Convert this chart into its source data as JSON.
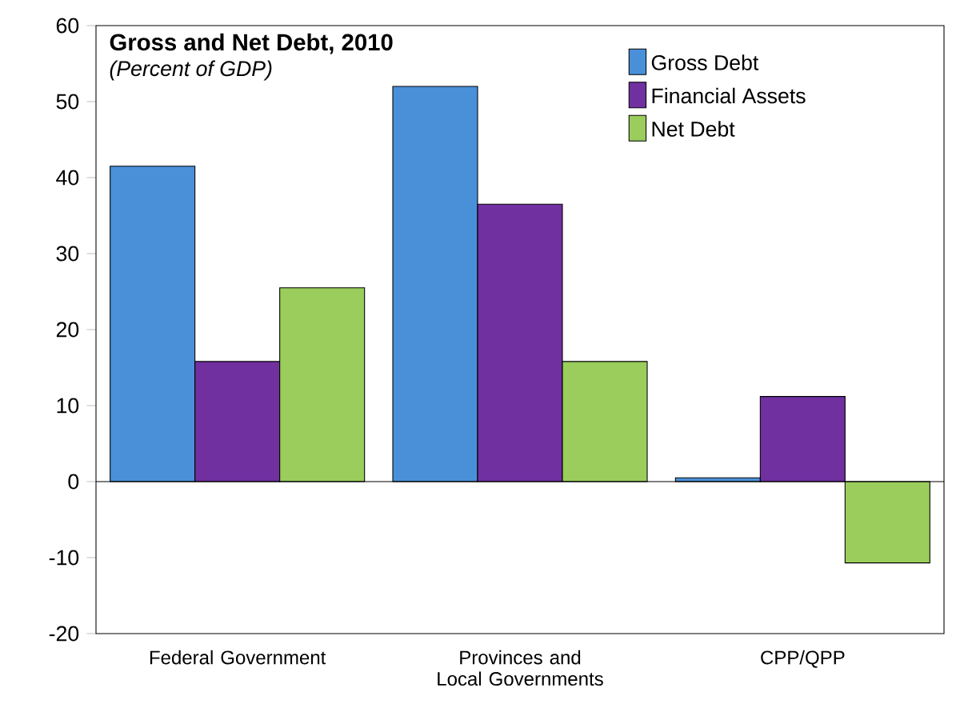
{
  "chart_data": {
    "type": "bar",
    "title": "Gross and Net Debt, 2010",
    "subtitle": "(Percent of GDP)",
    "categories": [
      "Federal Government",
      "Provinces and Local Governments",
      "CPP/QPP"
    ],
    "series": [
      {
        "name": "Gross Debt",
        "color": "#4a90d9",
        "values": [
          41.5,
          52,
          0.5
        ]
      },
      {
        "name": "Financial Assets",
        "color": "#7030a0",
        "values": [
          15.8,
          36.5,
          11.2
        ]
      },
      {
        "name": "Net Debt",
        "color": "#9acd5c",
        "values": [
          25.5,
          15.8,
          -10.7
        ]
      }
    ],
    "ylim": [
      -20,
      60
    ],
    "yticks": [
      -20,
      -10,
      0,
      10,
      20,
      30,
      40,
      50,
      60
    ],
    "legend": "top right"
  }
}
